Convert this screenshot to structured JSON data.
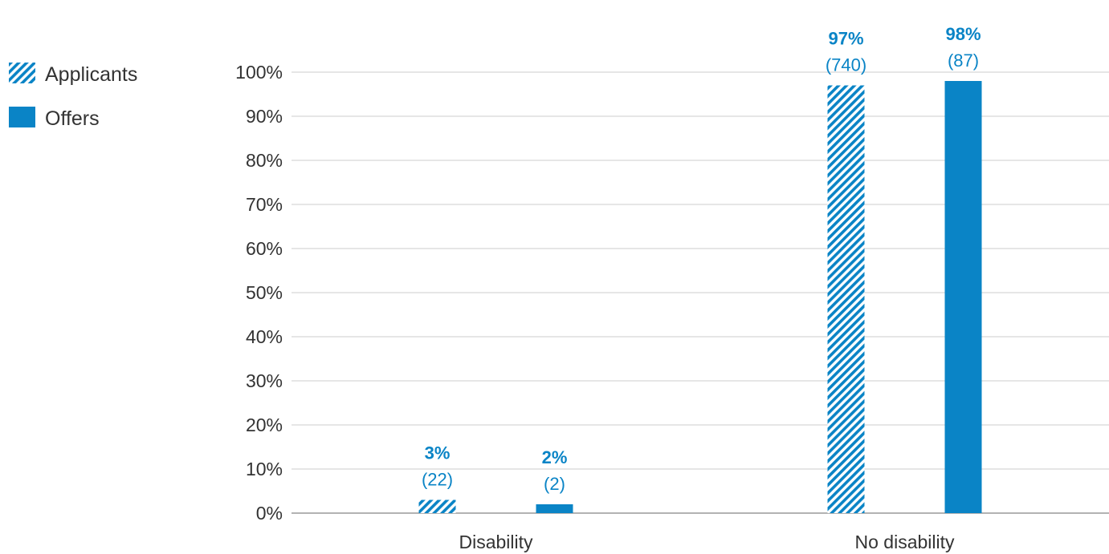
{
  "chart_data": {
    "type": "bar",
    "categories": [
      "Disability",
      "No disability"
    ],
    "series": [
      {
        "name": "Applicants",
        "values": [
          3,
          97
        ],
        "labels": [
          "3%",
          "97%"
        ],
        "counts": [
          "(22)",
          "(740)"
        ],
        "pattern": "hatched"
      },
      {
        "name": "Offers",
        "values": [
          2,
          98
        ],
        "labels": [
          "2%",
          "98%"
        ],
        "counts": [
          "(2)",
          "(87)"
        ],
        "pattern": "solid"
      }
    ],
    "y_ticks": [
      "0%",
      "10%",
      "20%",
      "30%",
      "40%",
      "50%",
      "60%",
      "70%",
      "80%",
      "90%",
      "100%"
    ],
    "ylim": [
      0,
      100
    ],
    "grid": true,
    "legend_position": "top-left",
    "colors": {
      "bar": "#0a84c6",
      "grid": "#cccccc",
      "axis": "#999999",
      "text": "#333333"
    }
  }
}
